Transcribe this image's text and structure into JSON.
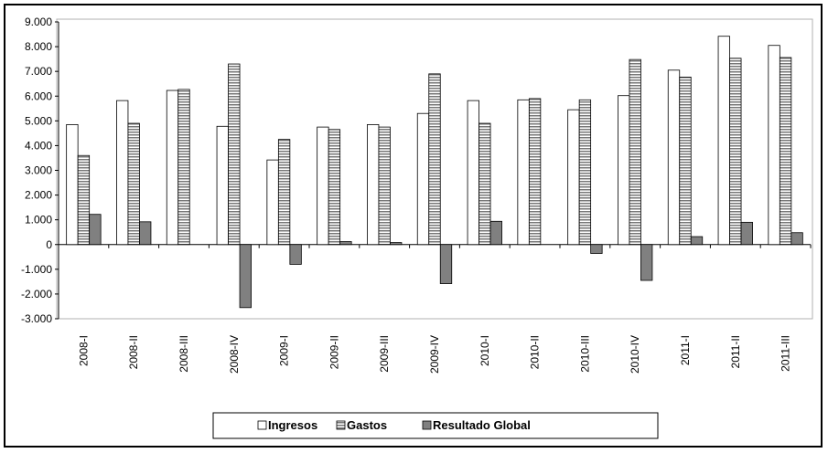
{
  "chart_data": {
    "type": "bar",
    "categories": [
      "2008-I",
      "2008-II",
      "2008-III",
      "2008-IV",
      "2009-I",
      "2009-II",
      "2009-III",
      "2009-IV",
      "2010-I",
      "2010-II",
      "2010-III",
      "2010-IV",
      "2011-I",
      "2011-II",
      "2011-III"
    ],
    "series": [
      {
        "name": "Ingresos",
        "values": [
          4850,
          5820,
          6230,
          4780,
          3420,
          4750,
          4850,
          5300,
          5820,
          5850,
          5450,
          6020,
          7050,
          8420,
          8050
        ],
        "color": "#ffffff"
      },
      {
        "name": "Gastos",
        "values": [
          3600,
          4900,
          6270,
          7300,
          4250,
          4650,
          4750,
          6900,
          4900,
          5900,
          5850,
          7480,
          6770,
          7530,
          7560
        ],
        "color": "#c0c0c0"
      },
      {
        "name": "Resultado Global",
        "values": [
          1220,
          920,
          0,
          -2550,
          -800,
          120,
          80,
          -1580,
          940,
          0,
          -360,
          -1450,
          320,
          900,
          480
        ],
        "color": "#808080"
      }
    ],
    "yticks": [
      "9.000",
      "8.000",
      "7.000",
      "6.000",
      "5.000",
      "4.000",
      "3.000",
      "2.000",
      "1.000",
      "0",
      "-1.000",
      "-2.000",
      "-3.000"
    ],
    "ylim": [
      -3000,
      9000
    ],
    "legend_position": "bottom",
    "grid": false
  }
}
